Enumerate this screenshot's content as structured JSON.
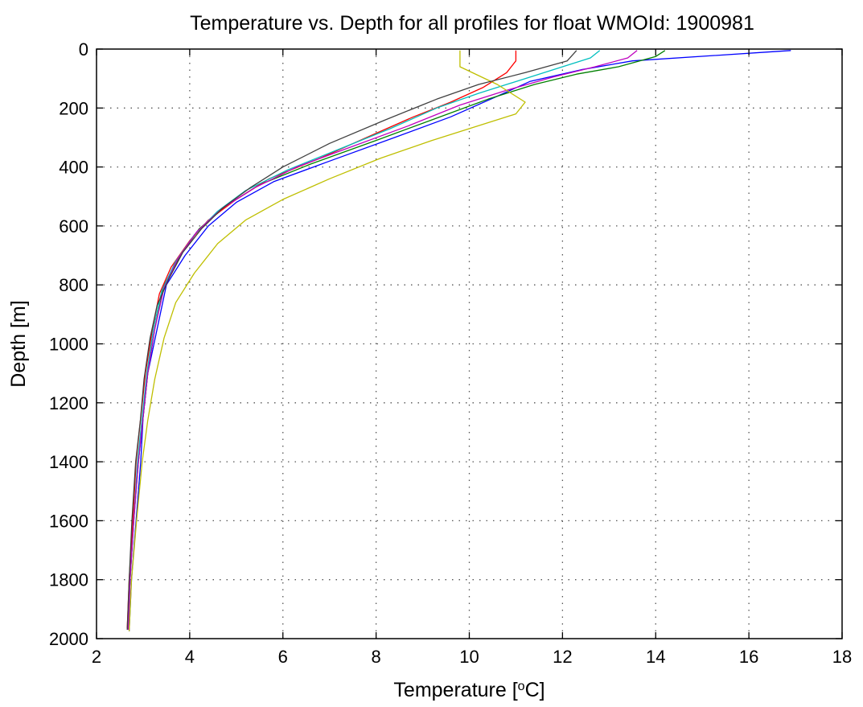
{
  "chart_data": {
    "type": "line",
    "title": "Temperature vs. Depth for all profiles for float WMOId: 1900981",
    "xlabel_prefix": "Temperature [",
    "xlabel_superscript": "o",
    "xlabel_suffix": "C]",
    "ylabel": "Depth [m]",
    "xlim": [
      2,
      18
    ],
    "ylim": [
      0,
      2000
    ],
    "y_reversed": true,
    "grid": true,
    "legend": "none",
    "x_ticks": [
      2,
      4,
      6,
      8,
      10,
      12,
      14,
      16,
      18
    ],
    "y_ticks": [
      0,
      200,
      400,
      600,
      800,
      1000,
      1200,
      1400,
      1600,
      1800,
      2000
    ],
    "x_tick_labels": [
      "2",
      "4",
      "6",
      "8",
      "10",
      "12",
      "14",
      "16",
      "18"
    ],
    "y_tick_labels": [
      "0",
      "200",
      "400",
      "600",
      "800",
      "1000",
      "1200",
      "1400",
      "1600",
      "1800",
      "2000"
    ],
    "series_colors": [
      "#0000ff",
      "#008000",
      "#ff0000",
      "#00bfbf",
      "#bf00bf",
      "#bfbf00",
      "#404040"
    ],
    "series": [
      {
        "color": "#0000ff",
        "x": [
          16.9,
          16.4,
          13.5,
          12.4,
          11.3,
          10.6,
          9.6,
          8.4,
          7.0,
          5.8,
          5.0,
          4.4,
          3.9,
          3.5,
          3.3,
          3.1,
          3.0,
          2.95,
          2.85,
          2.75,
          2.7
        ],
        "y": [
          5,
          10,
          40,
          70,
          110,
          160,
          230,
          300,
          380,
          450,
          520,
          600,
          700,
          800,
          950,
          1100,
          1250,
          1400,
          1600,
          1800,
          1975
        ]
      },
      {
        "color": "#008000",
        "x": [
          14.2,
          14.0,
          13.2,
          12.3,
          11.4,
          10.4,
          9.2,
          8.0,
          6.6,
          5.5,
          4.8,
          4.2,
          3.8,
          3.45,
          3.25,
          3.1,
          3.0,
          2.9,
          2.8,
          2.72,
          2.68
        ],
        "y": [
          5,
          25,
          60,
          85,
          120,
          170,
          240,
          310,
          390,
          460,
          530,
          610,
          700,
          800,
          950,
          1100,
          1250,
          1400,
          1600,
          1800,
          1970
        ]
      },
      {
        "color": "#ff0000",
        "x": [
          11.0,
          11.0,
          10.8,
          10.3,
          9.6,
          8.8,
          7.8,
          6.8,
          5.7,
          5.0,
          4.4,
          4.0,
          3.6,
          3.35,
          3.2,
          3.05,
          2.95,
          2.85,
          2.78,
          2.7,
          2.66
        ],
        "y": [
          5,
          40,
          80,
          130,
          180,
          230,
          300,
          370,
          440,
          510,
          580,
          650,
          740,
          830,
          950,
          1100,
          1250,
          1400,
          1600,
          1800,
          1965
        ]
      },
      {
        "color": "#00bfbf",
        "x": [
          12.8,
          12.6,
          12.0,
          11.2,
          10.2,
          9.3,
          8.3,
          7.2,
          6.1,
          5.2,
          4.6,
          4.1,
          3.7,
          3.4,
          3.22,
          3.08,
          2.98,
          2.88,
          2.8,
          2.72,
          2.68
        ],
        "y": [
          5,
          30,
          60,
          100,
          150,
          200,
          270,
          340,
          410,
          480,
          550,
          630,
          720,
          820,
          950,
          1100,
          1250,
          1400,
          1600,
          1800,
          1970
        ]
      },
      {
        "color": "#bf00bf",
        "x": [
          13.6,
          13.4,
          12.7,
          11.8,
          10.8,
          9.8,
          8.7,
          7.5,
          6.3,
          5.4,
          4.7,
          4.15,
          3.75,
          3.45,
          3.25,
          3.1,
          3.0,
          2.9,
          2.8,
          2.72,
          2.68
        ],
        "y": [
          5,
          30,
          60,
          95,
          140,
          190,
          260,
          330,
          400,
          470,
          540,
          620,
          710,
          810,
          950,
          1100,
          1250,
          1400,
          1600,
          1800,
          1970
        ]
      },
      {
        "color": "#bfbf00",
        "x": [
          9.8,
          9.8,
          10.6,
          11.2,
          11.0,
          10.2,
          9.2,
          8.1,
          7.0,
          6.0,
          5.2,
          4.6,
          4.1,
          3.7,
          3.45,
          3.25,
          3.1,
          2.98,
          2.86,
          2.75,
          2.7
        ],
        "y": [
          5,
          60,
          120,
          180,
          220,
          260,
          310,
          370,
          440,
          510,
          580,
          660,
          760,
          860,
          980,
          1120,
          1260,
          1400,
          1600,
          1800,
          1975
        ]
      },
      {
        "color": "#404040",
        "x": [
          12.3,
          12.1,
          11.2,
          10.2,
          9.3,
          8.2,
          7.0,
          6.0,
          5.3,
          4.7,
          4.25,
          3.85,
          3.55,
          3.3,
          3.15,
          3.02,
          2.94,
          2.84,
          2.76,
          2.7,
          2.66
        ],
        "y": [
          5,
          40,
          80,
          120,
          170,
          240,
          320,
          400,
          470,
          540,
          610,
          690,
          780,
          870,
          980,
          1120,
          1260,
          1400,
          1600,
          1800,
          1970
        ]
      }
    ]
  }
}
